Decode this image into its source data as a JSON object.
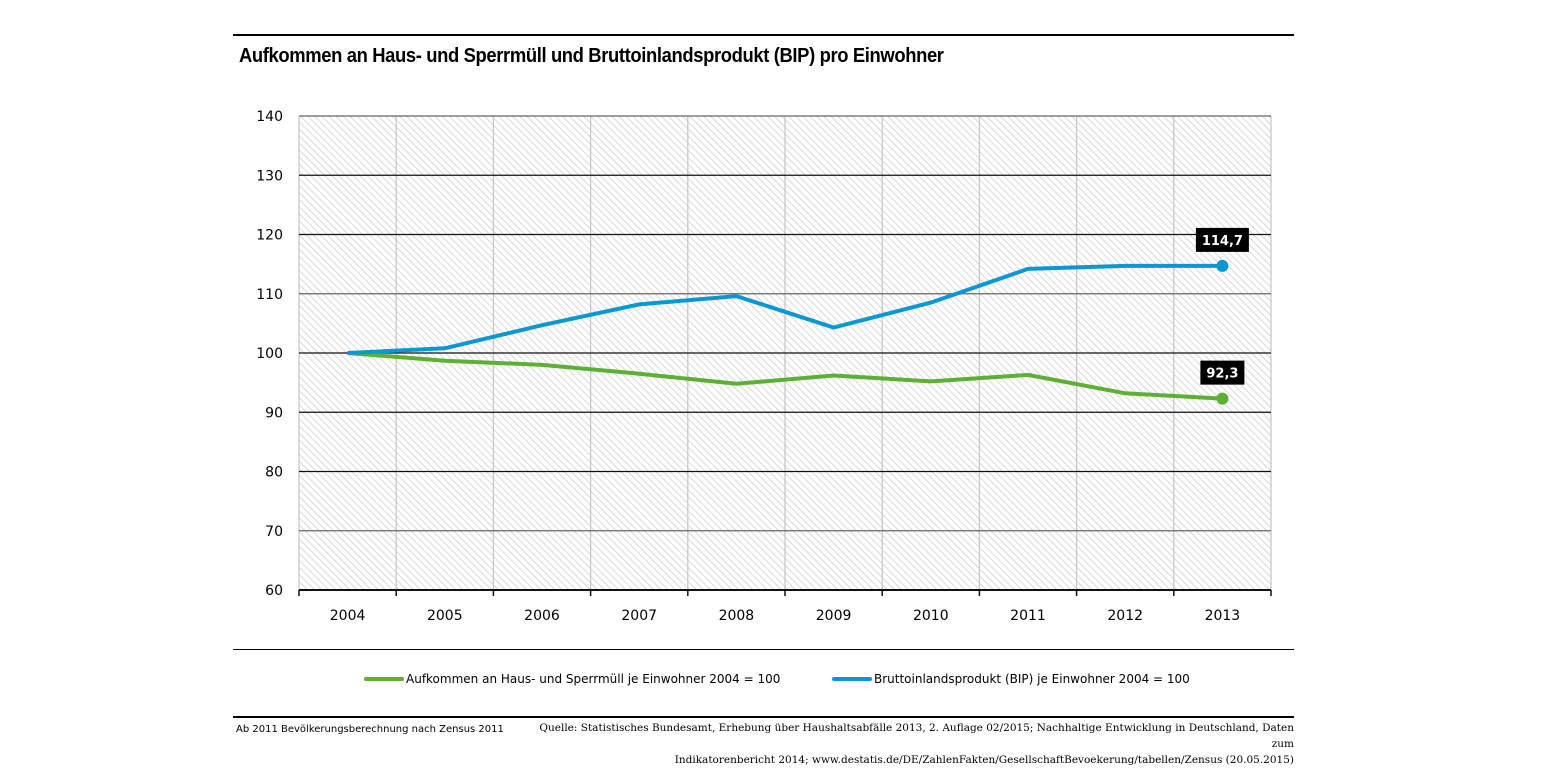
{
  "chart_data": {
    "type": "line",
    "title": "Aufkommen an Haus- und Sperrmüll und Bruttoinlandsprodukt (BIP) pro Einwohner",
    "xlabel": "",
    "ylabel": "",
    "categories": [
      "2004",
      "2005",
      "2006",
      "2007",
      "2008",
      "2009",
      "2010",
      "2011",
      "2012",
      "2013"
    ],
    "ylim": [
      60,
      140
    ],
    "yticks": [
      60,
      70,
      80,
      90,
      100,
      110,
      120,
      130,
      140
    ],
    "grid": true,
    "legend_position": "bottom",
    "series": [
      {
        "name": "Aufkommen an Haus- und Sperrmüll je Einwohner 2004 = 100",
        "color": "#5eaf35",
        "values": [
          100,
          98.7,
          98.0,
          96.5,
          94.8,
          96.2,
          95.2,
          96.3,
          93.2,
          92.3
        ],
        "end_label": "92,3"
      },
      {
        "name": "Bruttoinlandsprodukt (BIP) je Einwohner 2004 = 100",
        "color": "#0b97d3",
        "values": [
          100,
          100.8,
          104.7,
          108.2,
          109.6,
          104.3,
          108.5,
          114.2,
          114.7,
          114.7
        ],
        "end_label": "114,7"
      }
    ]
  },
  "footnote": "Ab 2011 Bevölkerungsberechnung nach Zensus 2011",
  "source": {
    "line1": "Quelle: Statistisches Bundesamt, Erhebung über Haushaltsabfälle 2013, 2. Auflage 02/2015; Nachhaltige Entwicklung in Deutschland, Daten zum",
    "line2": "Indikatorenbericht 2014; www.destatis.de/DE/ZahlenFakten/GesellschaftBevoekerung/tabellen/Zensus (20.05.2015)"
  }
}
